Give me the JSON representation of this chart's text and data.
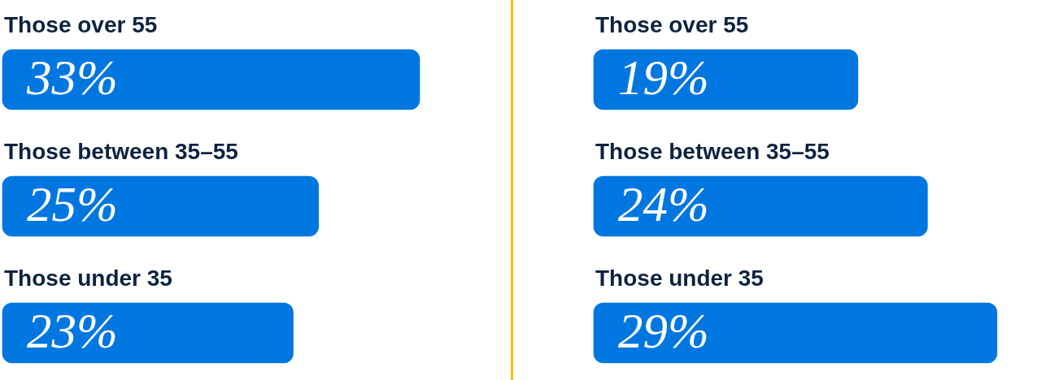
{
  "chart_data": [
    {
      "type": "bar",
      "orientation": "horizontal",
      "categories": [
        "Those over 55",
        "Those between 35–55",
        "Those under 35"
      ],
      "values": [
        33,
        25,
        23
      ],
      "value_labels": [
        "33%",
        "25%",
        "23%"
      ],
      "color": "#0077e0",
      "xlim": [
        0,
        33
      ]
    },
    {
      "type": "bar",
      "orientation": "horizontal",
      "categories": [
        "Those over 55",
        "Those between 35–55",
        "Those under 35"
      ],
      "values": [
        19,
        24,
        29
      ],
      "value_labels": [
        "19%",
        "24%",
        "29%"
      ],
      "color": "#0077e0"
    }
  ]
}
